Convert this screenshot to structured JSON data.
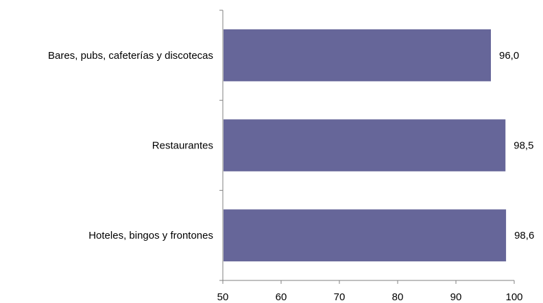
{
  "chart_data": {
    "type": "bar",
    "orientation": "horizontal",
    "title": "",
    "xlabel": "",
    "ylabel": "",
    "categories": [
      "Bares, pubs, cafeterías y discotecas",
      "Restaurantes",
      "Hoteles, bingos y frontones"
    ],
    "values": [
      96.0,
      98.5,
      98.6
    ],
    "value_labels": [
      "96,0",
      "98,5",
      "98,6"
    ],
    "xlim": [
      50,
      100
    ],
    "xticks": [
      50,
      60,
      70,
      80,
      90,
      100
    ],
    "xtick_labels": [
      "50",
      "60",
      "70",
      "80",
      "90",
      "100"
    ],
    "grid": false,
    "legend": "none",
    "bar_color": "#666699"
  }
}
